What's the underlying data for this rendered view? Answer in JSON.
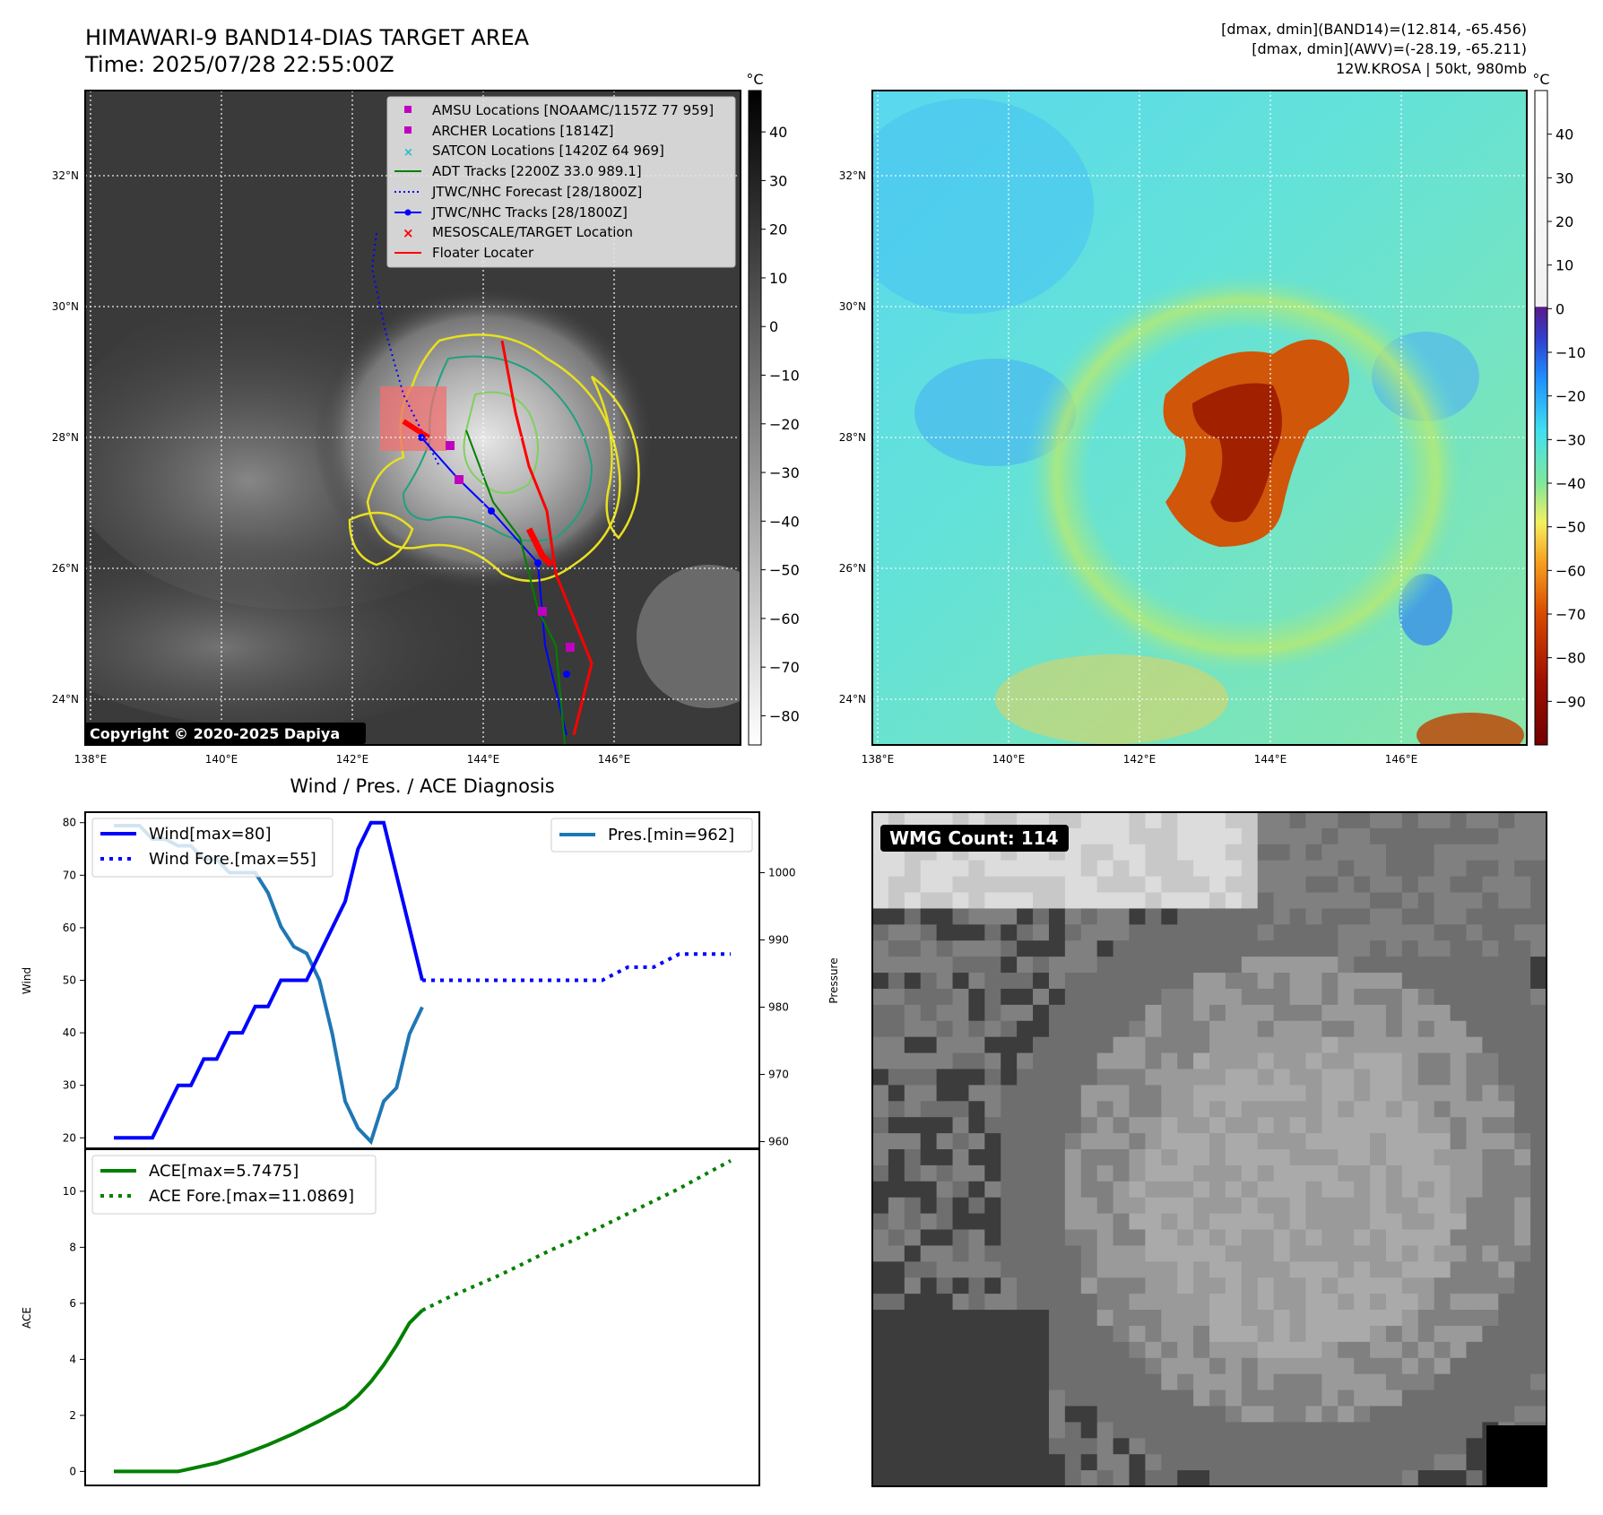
{
  "header": {
    "title_line1": "HIMAWARI-9 BAND14-DIAS TARGET AREA",
    "title_line2": "Time: 2025/07/28 22:55:00Z",
    "info_line1": "[dmax, dmin](BAND14)=(12.814, -65.456)",
    "info_line2": "[dmax, dmin](AWV)=(-28.19, -65.211)",
    "info_line3": "12W.KROSA | 50kt, 980mb"
  },
  "map_axes": {
    "lon_labels": [
      "138°E",
      "140°E",
      "142°E",
      "144°E",
      "146°E"
    ],
    "lat_labels": [
      "24°N",
      "26°N",
      "28°N",
      "30°N",
      "32°N"
    ]
  },
  "copyright": "Copyright © 2020-2025 Dapiya",
  "ir_colorbar": {
    "unit": "°C",
    "ticks": [
      "40",
      "30",
      "20",
      "10",
      "0",
      "−10",
      "−20",
      "−30",
      "−40",
      "−50",
      "−60",
      "−70",
      "−80"
    ]
  },
  "awv_colorbar": {
    "unit": "°C",
    "ticks": [
      "40",
      "30",
      "20",
      "10",
      "0",
      "−10",
      "−20",
      "−30",
      "−40",
      "−50",
      "−60",
      "−70",
      "−80",
      "−90"
    ]
  },
  "legend": {
    "items": [
      {
        "label": "AMSU Locations [NOAAMC/1157Z 77 959]",
        "kind": "square",
        "color": "#c000c0"
      },
      {
        "label": "ARCHER Locations [1814Z]",
        "kind": "square",
        "color": "#c000c0"
      },
      {
        "label": "SATCON Locations [1420Z 64 969]",
        "kind": "cross",
        "color": "#1fbfbf"
      },
      {
        "label": "ADT Tracks [2200Z 33.0 989.1]",
        "kind": "line",
        "color": "#008000"
      },
      {
        "label": "JTWC/NHC Forecast [28/1800Z]",
        "kind": "dotted",
        "color": "#0000ff"
      },
      {
        "label": "JTWC/NHC Tracks [28/1800Z]",
        "kind": "linedot",
        "color": "#0000ff"
      },
      {
        "label": "MESOSCALE/TARGET Location",
        "kind": "x",
        "color": "#ff0000"
      },
      {
        "label": "Floater Locater",
        "kind": "line",
        "color": "#ff0000"
      }
    ]
  },
  "diag": {
    "title": "Wind / Pres. / ACE Diagnosis",
    "wind_ylabel": "Wind",
    "pres_ylabel": "Pressure",
    "ace_ylabel": "ACE",
    "wind_legend": [
      "Wind[max=80]",
      "Wind Fore.[max=55]"
    ],
    "pres_legend": "Pres.[min=962]",
    "ace_legend": [
      "ACE[max=5.7475]",
      "ACE Fore.[max=11.0869]"
    ],
    "wind_ticks": [
      "20",
      "30",
      "40",
      "50",
      "60",
      "70",
      "80"
    ],
    "pres_ticks": [
      "960",
      "970",
      "980",
      "990",
      "1000"
    ],
    "ace_ticks": [
      "0",
      "2",
      "4",
      "6",
      "8",
      "10"
    ]
  },
  "wmg": {
    "label": "WMG Count: 114"
  },
  "chart_data": [
    {
      "type": "line",
      "title": "Wind / Pres. / ACE Diagnosis",
      "ylabel": "Wind",
      "ylim": [
        18,
        82
      ],
      "series": [
        {
          "name": "Wind[max=80]",
          "x": [
            0,
            1,
            2,
            3,
            4,
            5,
            6,
            7,
            8,
            9,
            10,
            11,
            12,
            13,
            14,
            15,
            16,
            17,
            18,
            19,
            20,
            21,
            22,
            23,
            24
          ],
          "values": [
            20,
            20,
            20,
            20,
            25,
            30,
            30,
            35,
            35,
            40,
            40,
            45,
            45,
            50,
            50,
            50,
            55,
            60,
            65,
            75,
            80,
            80,
            70,
            60,
            50
          ]
        },
        {
          "name": "Wind Fore.[max=55]",
          "x": [
            24,
            26,
            28,
            30,
            32,
            34,
            36,
            38,
            40,
            42,
            44,
            46,
            48
          ],
          "values": [
            50,
            50,
            50,
            50,
            50,
            50,
            50,
            50,
            52.5,
            52.5,
            55,
            55,
            55
          ]
        }
      ]
    },
    {
      "type": "line",
      "ylabel": "Pressure",
      "ylim": [
        959,
        1009
      ],
      "series": [
        {
          "name": "Pres.[min=962]",
          "x": [
            0,
            1,
            2,
            3,
            4,
            5,
            6,
            7,
            8,
            9,
            10,
            11,
            12,
            13,
            14,
            15,
            16,
            17,
            18,
            19,
            20,
            21,
            22,
            23,
            24
          ],
          "values": [
            1007,
            1007,
            1007,
            1005,
            1005,
            1004,
            1004,
            1002,
            1002,
            1000,
            1000,
            1000,
            997,
            992,
            989,
            988,
            984,
            976,
            966,
            962,
            960,
            966,
            968,
            976,
            980
          ]
        }
      ]
    },
    {
      "type": "line",
      "ylabel": "ACE",
      "ylim": [
        -0.5,
        11.5
      ],
      "series": [
        {
          "name": "ACE[max=5.7475]",
          "x": [
            0,
            2,
            4,
            5,
            6,
            8,
            10,
            12,
            14,
            16,
            18,
            19,
            20,
            21,
            22,
            23,
            24
          ],
          "values": [
            0,
            0,
            0,
            0,
            0.1,
            0.3,
            0.6,
            0.95,
            1.35,
            1.8,
            2.3,
            2.7,
            3.2,
            3.8,
            4.5,
            5.3,
            5.75
          ]
        },
        {
          "name": "ACE Fore.[max=11.0869]",
          "x": [
            24,
            26,
            28,
            30,
            32,
            34,
            36,
            38,
            40,
            42,
            44,
            46,
            48
          ],
          "values": [
            5.75,
            6.2,
            6.6,
            7.0,
            7.45,
            7.9,
            8.3,
            8.75,
            9.2,
            9.65,
            10.1,
            10.6,
            11.09
          ]
        }
      ]
    }
  ]
}
